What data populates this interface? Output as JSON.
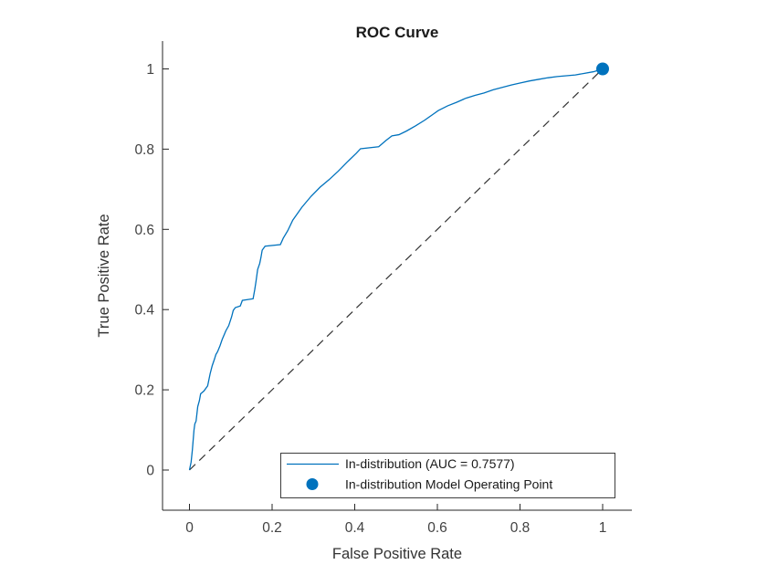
{
  "chart_data": {
    "type": "line",
    "title": "ROC Curve",
    "xlabel": "False Positive Rate",
    "ylabel": "True Positive Rate",
    "xlim": [
      -0.065,
      1.07
    ],
    "ylim": [
      -0.1,
      1.07
    ],
    "grid": false,
    "x_tick_labels": [
      "0",
      "0.2",
      "0.4",
      "0.6",
      "0.8",
      "1"
    ],
    "x_tick_values": [
      0,
      0.2,
      0.4,
      0.6,
      0.8,
      1
    ],
    "y_tick_labels": [
      "0",
      "0.2",
      "0.4",
      "0.6",
      "0.8",
      "1"
    ],
    "y_tick_values": [
      0,
      0.2,
      0.4,
      0.6,
      0.8,
      1
    ],
    "series": [
      {
        "name": "In-distribution (AUC = 0.7577)",
        "type": "line",
        "color": "#0072BD",
        "auc": 0.7577,
        "points": [
          [
            0,
            0
          ],
          [
            0.004,
            0.02
          ],
          [
            0.007,
            0.05
          ],
          [
            0.009,
            0.075
          ],
          [
            0.011,
            0.1
          ],
          [
            0.013,
            0.115
          ],
          [
            0.016,
            0.122
          ],
          [
            0.018,
            0.14
          ],
          [
            0.02,
            0.158
          ],
          [
            0.024,
            0.173
          ],
          [
            0.027,
            0.19
          ],
          [
            0.035,
            0.197
          ],
          [
            0.044,
            0.21
          ],
          [
            0.047,
            0.225
          ],
          [
            0.05,
            0.24
          ],
          [
            0.055,
            0.26
          ],
          [
            0.06,
            0.275
          ],
          [
            0.064,
            0.288
          ],
          [
            0.068,
            0.295
          ],
          [
            0.074,
            0.31
          ],
          [
            0.079,
            0.325
          ],
          [
            0.088,
            0.347
          ],
          [
            0.095,
            0.36
          ],
          [
            0.102,
            0.382
          ],
          [
            0.106,
            0.398
          ],
          [
            0.111,
            0.405
          ],
          [
            0.123,
            0.409
          ],
          [
            0.128,
            0.423
          ],
          [
            0.154,
            0.427
          ],
          [
            0.158,
            0.45
          ],
          [
            0.161,
            0.47
          ],
          [
            0.165,
            0.5
          ],
          [
            0.17,
            0.515
          ],
          [
            0.173,
            0.53
          ],
          [
            0.176,
            0.548
          ],
          [
            0.183,
            0.558
          ],
          [
            0.22,
            0.562
          ],
          [
            0.227,
            0.578
          ],
          [
            0.238,
            0.597
          ],
          [
            0.25,
            0.623
          ],
          [
            0.272,
            0.655
          ],
          [
            0.294,
            0.682
          ],
          [
            0.316,
            0.705
          ],
          [
            0.338,
            0.724
          ],
          [
            0.36,
            0.745
          ],
          [
            0.382,
            0.768
          ],
          [
            0.404,
            0.79
          ],
          [
            0.414,
            0.801
          ],
          [
            0.458,
            0.806
          ],
          [
            0.476,
            0.822
          ],
          [
            0.49,
            0.833
          ],
          [
            0.507,
            0.836
          ],
          [
            0.525,
            0.845
          ],
          [
            0.547,
            0.858
          ],
          [
            0.569,
            0.872
          ],
          [
            0.591,
            0.888
          ],
          [
            0.602,
            0.896
          ],
          [
            0.625,
            0.908
          ],
          [
            0.647,
            0.917
          ],
          [
            0.669,
            0.927
          ],
          [
            0.691,
            0.934
          ],
          [
            0.713,
            0.94
          ],
          [
            0.735,
            0.948
          ],
          [
            0.757,
            0.954
          ],
          [
            0.779,
            0.96
          ],
          [
            0.801,
            0.965
          ],
          [
            0.823,
            0.97
          ],
          [
            0.845,
            0.974
          ],
          [
            0.868,
            0.978
          ],
          [
            0.89,
            0.981
          ],
          [
            0.912,
            0.983
          ],
          [
            0.934,
            0.985
          ],
          [
            0.956,
            0.989
          ],
          [
            0.978,
            0.993
          ],
          [
            1,
            1
          ]
        ]
      },
      {
        "name": "In-distribution Model Operating Point",
        "type": "scatter",
        "color": "#0072BD",
        "points": [
          [
            1,
            1
          ]
        ]
      }
    ],
    "reference_line": {
      "name": "chance-diagonal",
      "style": "dashed",
      "color": "#333333",
      "points": [
        [
          0,
          0
        ],
        [
          1,
          1
        ]
      ]
    },
    "legend": {
      "position": "south-inside",
      "entries": [
        {
          "label": "In-distribution (AUC = 0.7577)",
          "marker": "line"
        },
        {
          "label": "In-distribution Model Operating Point",
          "marker": "dot"
        }
      ]
    }
  },
  "colors": {
    "series_blue": "#0072BD",
    "reference": "#333333",
    "axis": "#262626",
    "background": "#ffffff",
    "legend_border": "#3d3d3d"
  }
}
